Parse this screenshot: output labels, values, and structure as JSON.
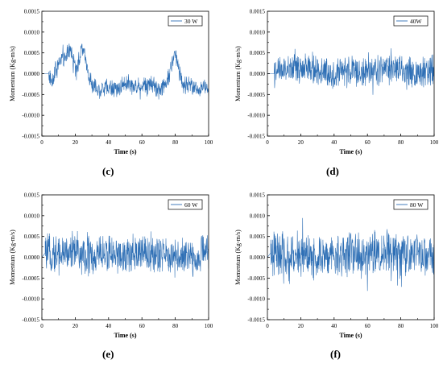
{
  "panel_labels": [
    "(c)",
    "(d)",
    "(e)",
    "(f)"
  ],
  "chart_data": [
    {
      "type": "line",
      "title": "",
      "xlabel": "Time (s)",
      "ylabel": "Momentum (Kg-m/s)",
      "xlim": [
        0,
        100
      ],
      "ylim": [
        -0.0015,
        0.0015
      ],
      "xticks": [
        "0",
        "20",
        "40",
        "60",
        "80",
        "100"
      ],
      "yticks": [
        "0.0015",
        "0.0010",
        "0.0005",
        "0.0000",
        "-0.0005",
        "-0.0010",
        "-0.0015"
      ],
      "grid": false,
      "legend_position": "top-right",
      "color": "#2e6fb5",
      "series": [
        {
          "name": "30 W",
          "x": [
            0,
            4,
            6,
            8,
            10,
            12,
            14,
            16,
            18,
            20,
            22,
            24,
            26,
            28,
            30,
            35,
            40,
            45,
            50,
            55,
            60,
            65,
            70,
            75,
            78,
            80,
            82,
            85,
            90,
            95,
            100
          ],
          "y": [
            0.0,
            0.0,
            -0.0002,
            0.0001,
            0.0002,
            0.0004,
            0.0003,
            0.0006,
            0.0005,
            0.0001,
            0.0003,
            0.0006,
            0.0004,
            0.0,
            -0.0003,
            -0.0004,
            -0.0003,
            -0.0004,
            -0.0002,
            -0.0003,
            -0.0003,
            -0.0002,
            -0.0004,
            -0.0002,
            0.0002,
            0.0005,
            0.0002,
            -0.0003,
            -0.0003,
            -0.0004,
            -0.0003
          ]
        }
      ]
    },
    {
      "type": "line",
      "title": "",
      "xlabel": "Time (s)",
      "ylabel": "Momentum (Kg-m/s)",
      "xlim": [
        0,
        100
      ],
      "ylim": [
        -0.0015,
        0.0015
      ],
      "xticks": [
        "0",
        "20",
        "40",
        "60",
        "80",
        "100"
      ],
      "yticks": [
        "0.0015",
        "0.0010",
        "0.0005",
        "0.0000",
        "-0.0005",
        "-0.0010",
        "-0.0015"
      ],
      "grid": false,
      "legend_position": "top-right",
      "color": "#2e6fb5",
      "series": [
        {
          "name": "40W",
          "x": [
            0,
            4,
            10,
            20,
            30,
            40,
            50,
            60,
            70,
            80,
            90,
            100
          ],
          "y": [
            0.0,
            0.0,
            0.0001,
            0.0001,
            0.0001,
            0.0,
            0.0001,
            0.0,
            0.0001,
            0.0001,
            0.0,
            0.0001
          ]
        }
      ]
    },
    {
      "type": "line",
      "title": "",
      "xlabel": "Time (s)",
      "ylabel": "Momentum (Kg-m/s)",
      "xlim": [
        0,
        100
      ],
      "ylim": [
        -0.0015,
        0.0015
      ],
      "xticks": [
        "0",
        "20",
        "40",
        "60",
        "80",
        "100"
      ],
      "yticks": [
        "0.0015",
        "0.0010",
        "0.0005",
        "0.0000",
        "-0.0005",
        "-0.0010",
        "-0.0015"
      ],
      "grid": false,
      "legend_position": "top-right",
      "color": "#2e6fb5",
      "series": [
        {
          "name": "60 W",
          "x": [
            0,
            2,
            10,
            20,
            30,
            40,
            50,
            60,
            70,
            80,
            90,
            100
          ],
          "y": [
            0.0,
            0.0001,
            0.0001,
            0.0001,
            0.0,
            0.0001,
            0.0,
            0.0001,
            0.0,
            0.0001,
            0.0,
            0.0001
          ]
        }
      ]
    },
    {
      "type": "line",
      "title": "",
      "xlabel": "Time (s)",
      "ylabel": "Momentum (Kg-m/s)",
      "xlim": [
        0,
        100
      ],
      "ylim": [
        -0.0015,
        0.0015
      ],
      "xticks": [
        "0",
        "20",
        "40",
        "60",
        "80",
        "100"
      ],
      "yticks": [
        "0.0015",
        "0.0010",
        "0.0005",
        "0.0000",
        "-0.0005",
        "-0.0010",
        "-0.0015"
      ],
      "grid": false,
      "legend_position": "top-right",
      "color": "#2e6fb5",
      "series": [
        {
          "name": "80 W",
          "x": [
            0,
            2,
            10,
            20,
            30,
            40,
            50,
            60,
            70,
            80,
            90,
            100
          ],
          "y": [
            0.0,
            0.0001,
            0.0,
            0.0001,
            0.0,
            0.0,
            0.0001,
            0.0,
            0.0001,
            0.0,
            0.0001,
            0.0
          ]
        }
      ]
    }
  ]
}
